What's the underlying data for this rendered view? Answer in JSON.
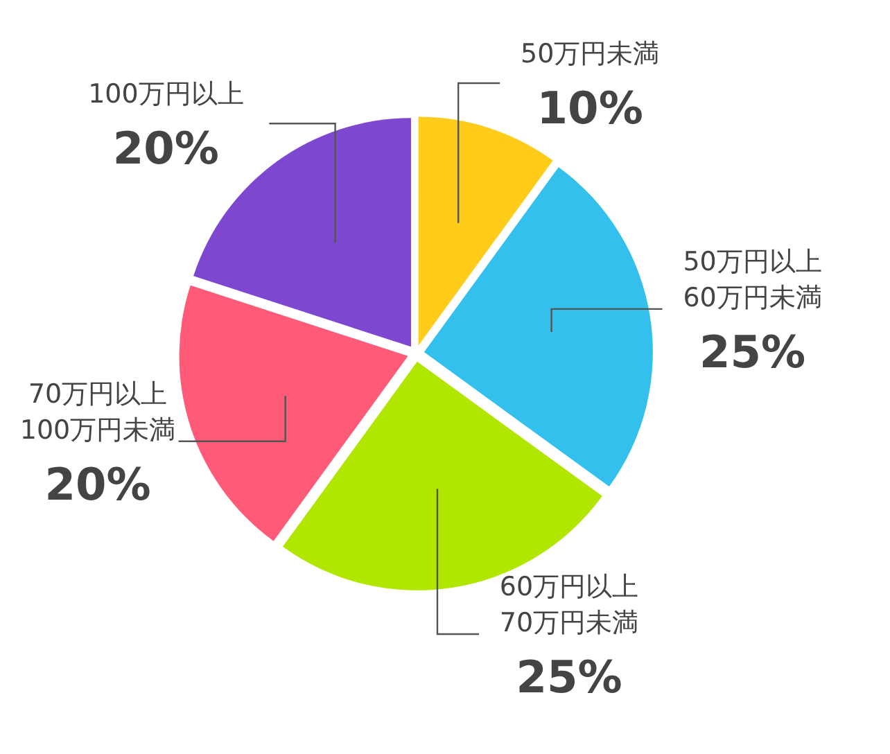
{
  "chart_data": {
    "type": "pie",
    "categories": [
      "50万円未満",
      "50万円以上\n60万円未満",
      "60万円以上\n70万円未満",
      "70万円以上\n100万円未満",
      "100万円以上"
    ],
    "values": [
      10,
      25,
      25,
      20,
      20
    ],
    "colors": [
      "#ffcc1a",
      "#33c0ec",
      "#b0e600",
      "#ff5a78",
      "#7d47cf"
    ],
    "value_labels": [
      "10%",
      "25%",
      "25%",
      "20%",
      "20%"
    ]
  }
}
